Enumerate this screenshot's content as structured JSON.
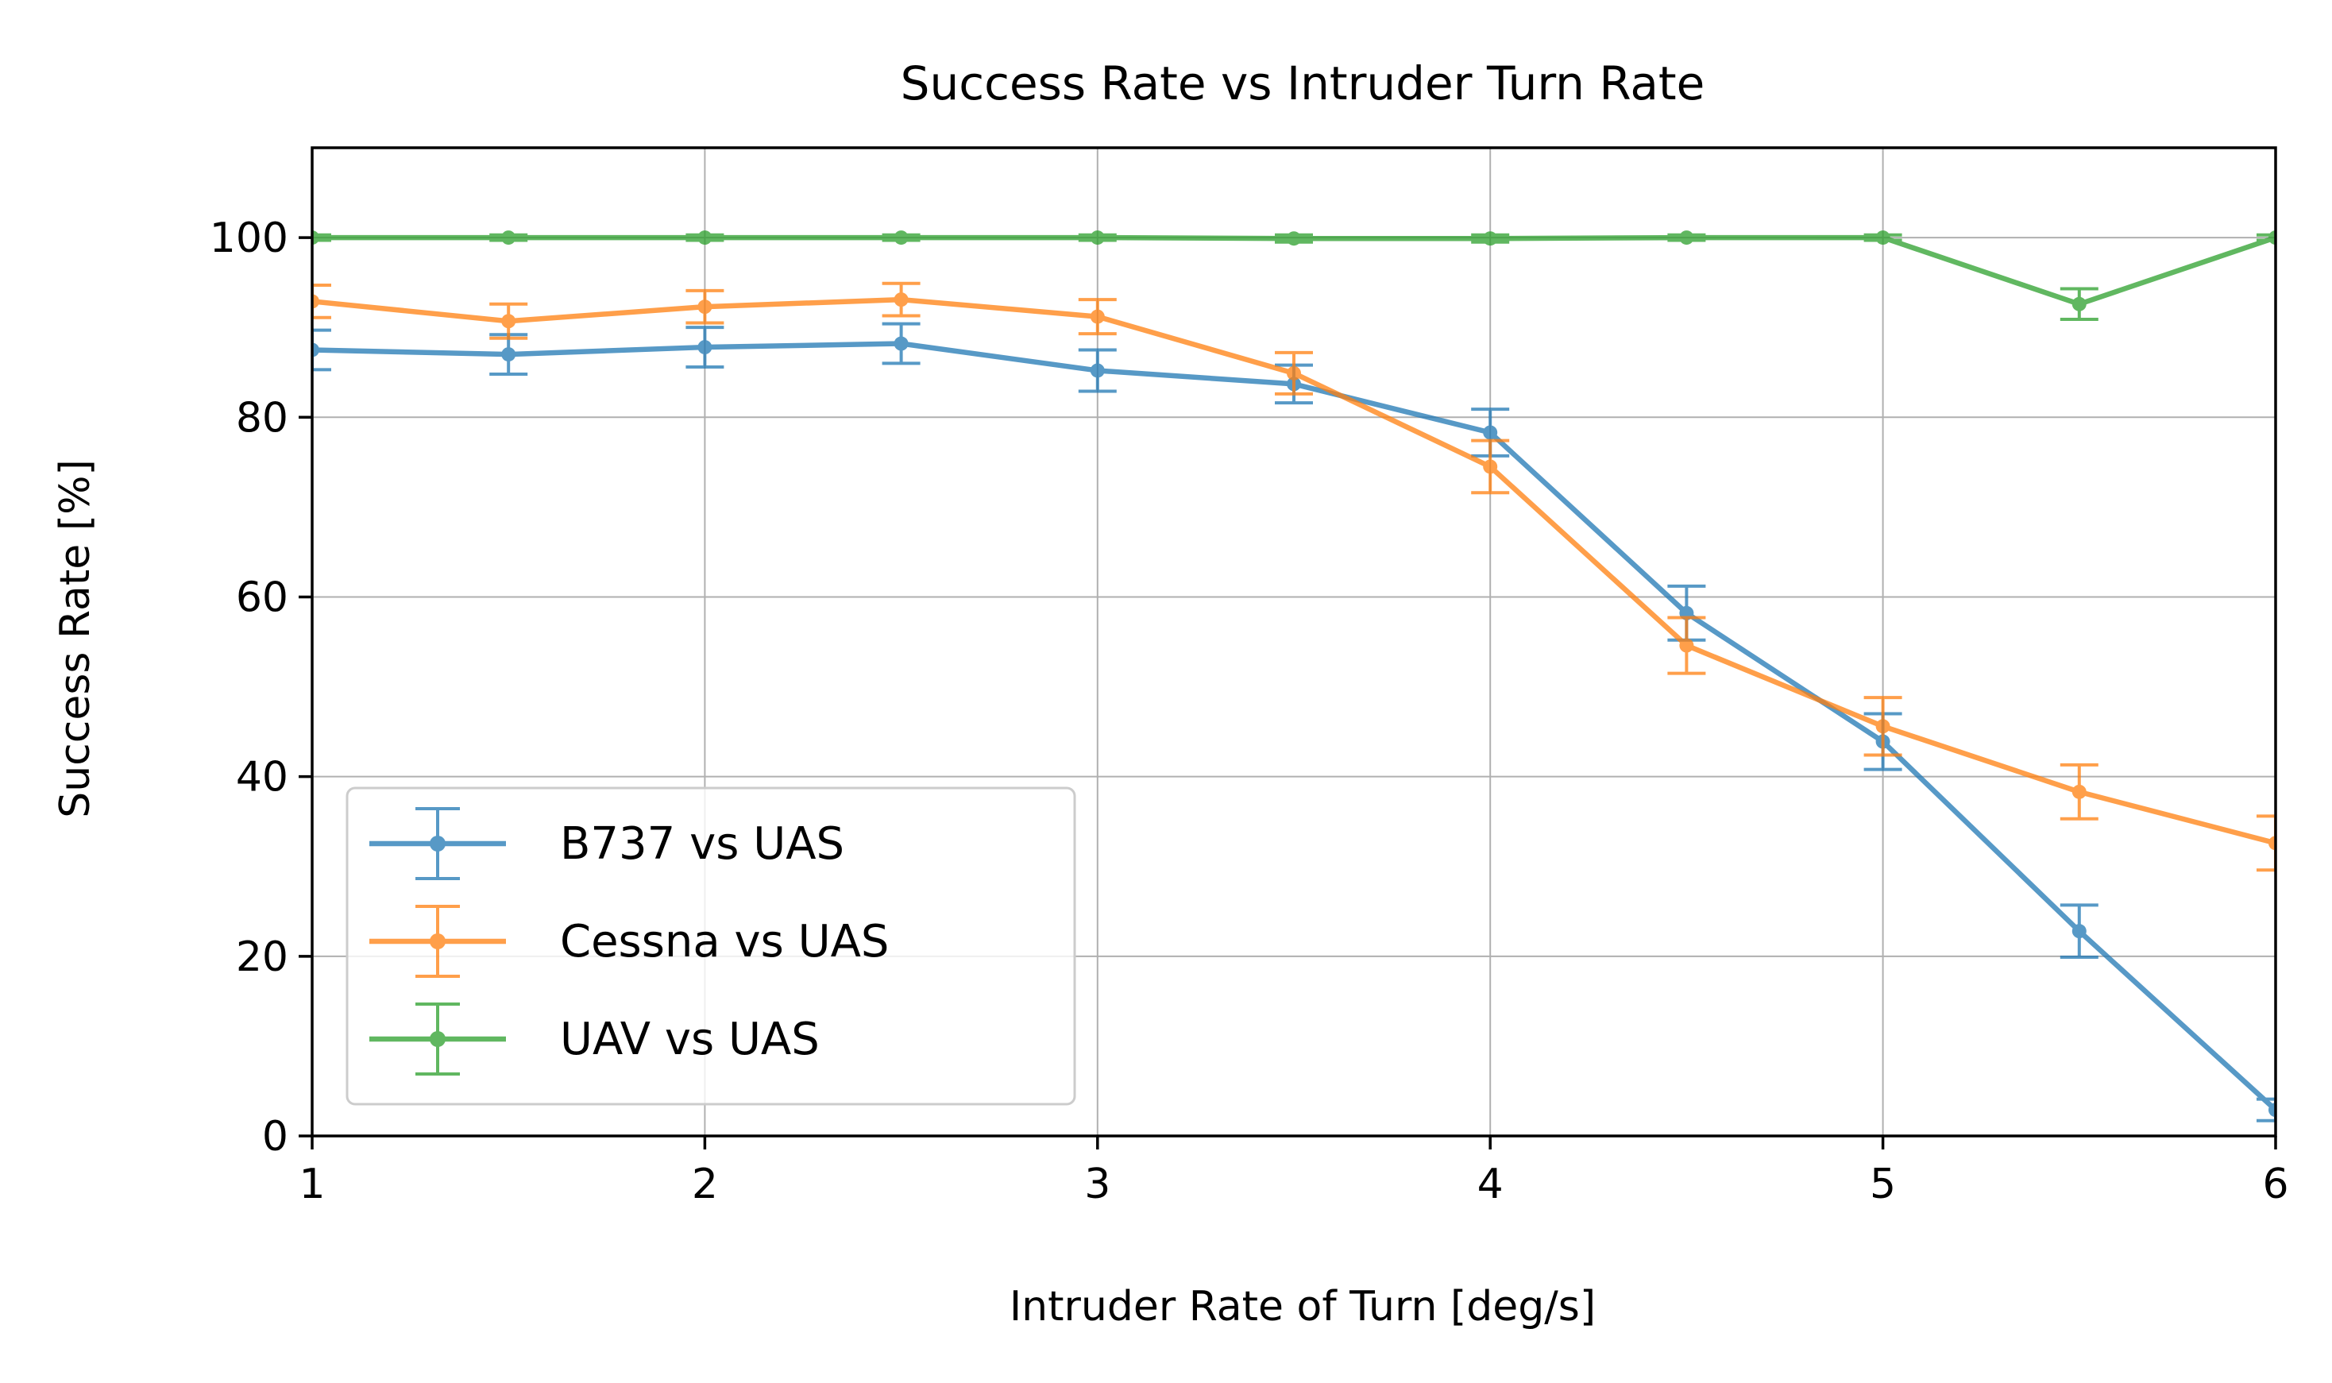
{
  "chart_data": {
    "type": "line",
    "title": "Success Rate vs Intruder Turn Rate",
    "xlabel": "Intruder Rate of Turn [deg/s]",
    "ylabel": "Success Rate [%]",
    "xlim": [
      1,
      6
    ],
    "ylim": [
      0,
      110
    ],
    "xticks": [
      1,
      2,
      3,
      4,
      5,
      6
    ],
    "xtick_labels": [
      "1",
      "2",
      "3",
      "4",
      "5",
      "6"
    ],
    "yticks": [
      0,
      20,
      40,
      60,
      80,
      100
    ],
    "ytick_labels": [
      "0",
      "20",
      "40",
      "60",
      "80",
      "100"
    ],
    "grid": true,
    "legend_position": "lower-left",
    "error_bars": true,
    "x": [
      1,
      1.5,
      2,
      2.5,
      3,
      3.5,
      4,
      4.5,
      5,
      5.5,
      6
    ],
    "series": [
      {
        "name": "B737 vs UAS",
        "color": "#1f77b4",
        "values": [
          87.5,
          87.0,
          87.8,
          88.2,
          85.2,
          83.7,
          78.3,
          58.2,
          43.9,
          22.8,
          2.9
        ],
        "errors": [
          2.2,
          2.2,
          2.2,
          2.2,
          2.3,
          2.1,
          2.6,
          3.0,
          3.1,
          2.9,
          1.2
        ]
      },
      {
        "name": "Cessna vs UAS",
        "color": "#ff7f0e",
        "values": [
          92.9,
          90.7,
          92.3,
          93.1,
          91.2,
          84.9,
          74.5,
          54.6,
          45.6,
          38.3,
          32.6
        ],
        "errors": [
          1.8,
          1.9,
          1.8,
          1.8,
          1.9,
          2.3,
          2.9,
          3.1,
          3.2,
          3.0,
          3.0
        ]
      },
      {
        "name": "UAV vs UAS",
        "color": "#2ca02c",
        "values": [
          100,
          100,
          100,
          100,
          100,
          99.9,
          99.9,
          100,
          100,
          92.6,
          100
        ],
        "errors": [
          0.3,
          0.3,
          0.3,
          0.3,
          0.3,
          0.4,
          0.4,
          0.3,
          0.3,
          1.7,
          0.3
        ]
      }
    ]
  }
}
